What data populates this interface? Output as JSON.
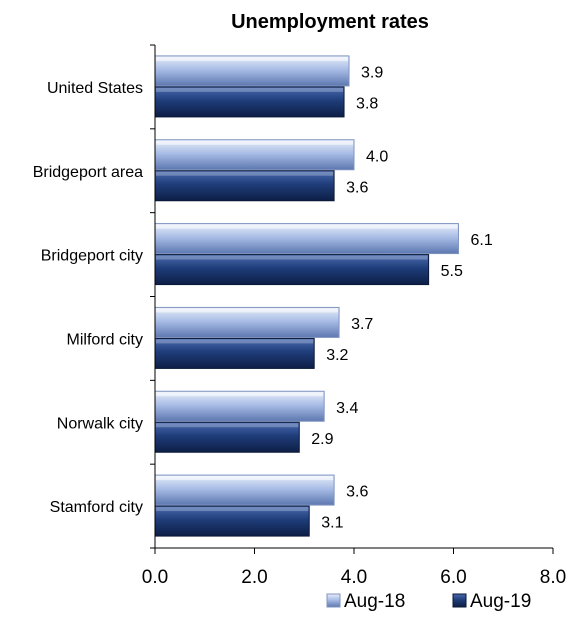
{
  "chart_data": {
    "type": "bar",
    "orientation": "horizontal",
    "title": "Unemployment rates",
    "xlabel": "",
    "ylabel": "",
    "categories": [
      "United States",
      "Bridgeport area",
      "Bridgeport city",
      "Milford city",
      "Norwalk city",
      "Stamford city"
    ],
    "series": [
      {
        "name": "Aug-18",
        "values": [
          3.9,
          4.0,
          6.1,
          3.7,
          3.4,
          3.6
        ],
        "color": "#a9bde6"
      },
      {
        "name": "Aug-19",
        "values": [
          3.8,
          3.6,
          5.5,
          3.2,
          2.9,
          3.1
        ],
        "color": "#1f3d7a"
      }
    ],
    "xlim": [
      0,
      8
    ],
    "xticks": [
      "0.0",
      "2.0",
      "4.0",
      "6.0",
      "8.0"
    ],
    "data_labels": true,
    "grid": false,
    "legend_position": "bottom-right"
  }
}
